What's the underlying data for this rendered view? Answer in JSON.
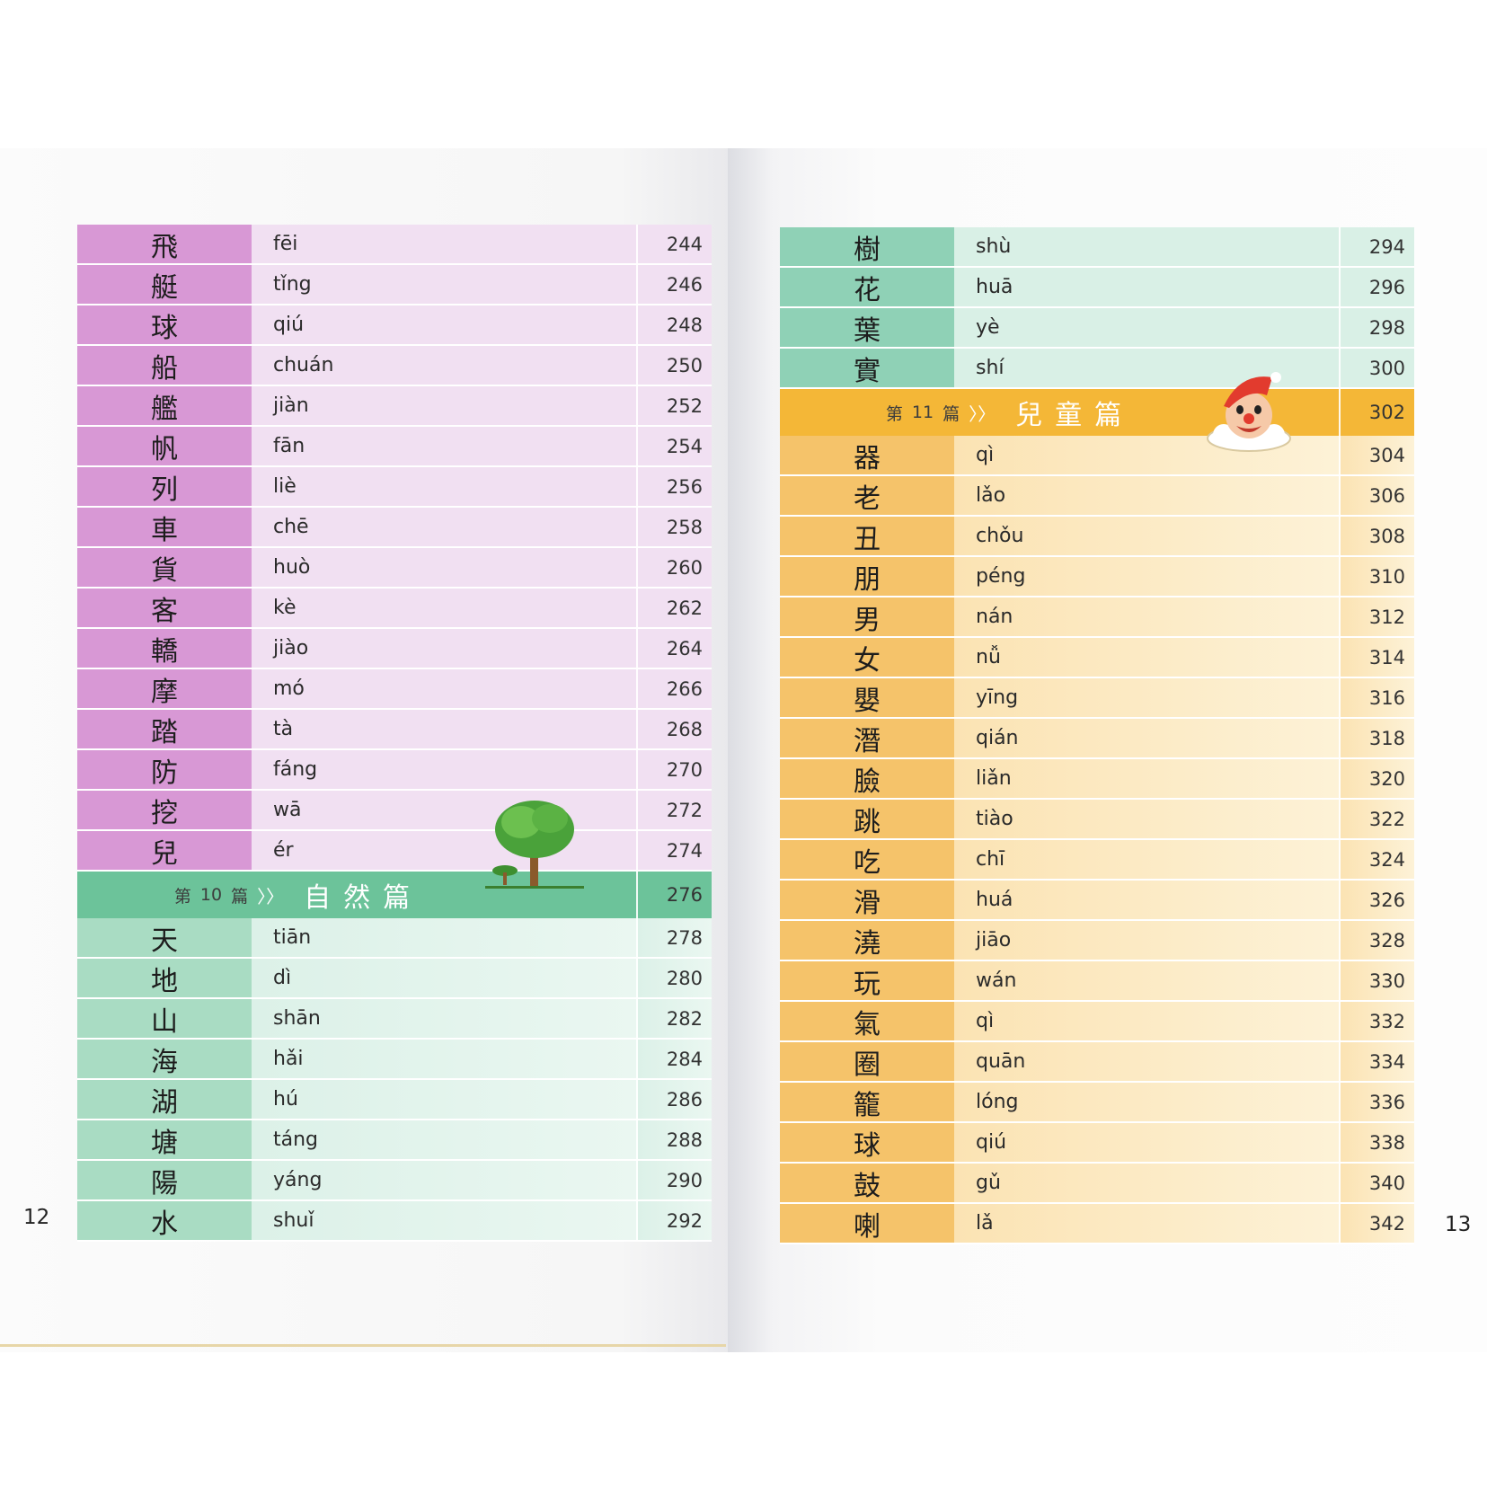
{
  "left_page": {
    "page_number": "12",
    "rows_pink": [
      {
        "char": "飛",
        "pinyin": "fēi",
        "page": "244"
      },
      {
        "char": "艇",
        "pinyin": "tǐng",
        "page": "246"
      },
      {
        "char": "球",
        "pinyin": "qiú",
        "page": "248"
      },
      {
        "char": "船",
        "pinyin": "chuán",
        "page": "250"
      },
      {
        "char": "艦",
        "pinyin": "jiàn",
        "page": "252"
      },
      {
        "char": "帆",
        "pinyin": "fān",
        "page": "254"
      },
      {
        "char": "列",
        "pinyin": "liè",
        "page": "256"
      },
      {
        "char": "車",
        "pinyin": "chē",
        "page": "258"
      },
      {
        "char": "貨",
        "pinyin": "huò",
        "page": "260"
      },
      {
        "char": "客",
        "pinyin": "kè",
        "page": "262"
      },
      {
        "char": "轎",
        "pinyin": "jiào",
        "page": "264"
      },
      {
        "char": "摩",
        "pinyin": "mó",
        "page": "266"
      },
      {
        "char": "踏",
        "pinyin": "tà",
        "page": "268"
      },
      {
        "char": "防",
        "pinyin": "fáng",
        "page": "270"
      },
      {
        "char": "挖",
        "pinyin": "wā",
        "page": "272"
      },
      {
        "char": "兒",
        "pinyin": "ér",
        "page": "274"
      }
    ],
    "section": {
      "prefix": "第",
      "num": "10",
      "suffix": "篇",
      "arrows": "〉〉",
      "title": "自然篇",
      "page": "276"
    },
    "rows_green": [
      {
        "char": "天",
        "pinyin": "tiān",
        "page": "278"
      },
      {
        "char": "地",
        "pinyin": "dì",
        "page": "280"
      },
      {
        "char": "山",
        "pinyin": "shān",
        "page": "282"
      },
      {
        "char": "海",
        "pinyin": "hǎi",
        "page": "284"
      },
      {
        "char": "湖",
        "pinyin": "hú",
        "page": "286"
      },
      {
        "char": "塘",
        "pinyin": "táng",
        "page": "288"
      },
      {
        "char": "陽",
        "pinyin": "yáng",
        "page": "290"
      },
      {
        "char": "水",
        "pinyin": "shuǐ",
        "page": "292"
      }
    ]
  },
  "right_page": {
    "page_number": "13",
    "rows_teal": [
      {
        "char": "樹",
        "pinyin": "shù",
        "page": "294"
      },
      {
        "char": "花",
        "pinyin": "huā",
        "page": "296"
      },
      {
        "char": "葉",
        "pinyin": "yè",
        "page": "298"
      },
      {
        "char": "實",
        "pinyin": "shí",
        "page": "300"
      }
    ],
    "section": {
      "prefix": "第",
      "num": "11",
      "suffix": "篇",
      "arrows": "〉〉",
      "title": "兒童篇",
      "page": "302"
    },
    "rows_orange": [
      {
        "char": "器",
        "pinyin": "qì",
        "page": "304"
      },
      {
        "char": "老",
        "pinyin": "lǎo",
        "page": "306"
      },
      {
        "char": "丑",
        "pinyin": "chǒu",
        "page": "308"
      },
      {
        "char": "朋",
        "pinyin": "péng",
        "page": "310"
      },
      {
        "char": "男",
        "pinyin": "nán",
        "page": "312"
      },
      {
        "char": "女",
        "pinyin": "nǚ",
        "page": "314"
      },
      {
        "char": "嬰",
        "pinyin": "yīng",
        "page": "316"
      },
      {
        "char": "潛",
        "pinyin": "qián",
        "page": "318"
      },
      {
        "char": "臉",
        "pinyin": "liǎn",
        "page": "320"
      },
      {
        "char": "跳",
        "pinyin": "tiào",
        "page": "322"
      },
      {
        "char": "吃",
        "pinyin": "chī",
        "page": "324"
      },
      {
        "char": "滑",
        "pinyin": "huá",
        "page": "326"
      },
      {
        "char": "澆",
        "pinyin": "jiāo",
        "page": "328"
      },
      {
        "char": "玩",
        "pinyin": "wán",
        "page": "330"
      },
      {
        "char": "氣",
        "pinyin": "qì",
        "page": "332"
      },
      {
        "char": "圈",
        "pinyin": "quān",
        "page": "334"
      },
      {
        "char": "籠",
        "pinyin": "lóng",
        "page": "336"
      },
      {
        "char": "球",
        "pinyin": "qiú",
        "page": "338"
      },
      {
        "char": "鼓",
        "pinyin": "gǔ",
        "page": "340"
      },
      {
        "char": "喇",
        "pinyin": "lǎ",
        "page": "342"
      }
    ]
  },
  "icons": {
    "tree": "tree-illustration",
    "clown": "clown-illustration"
  }
}
